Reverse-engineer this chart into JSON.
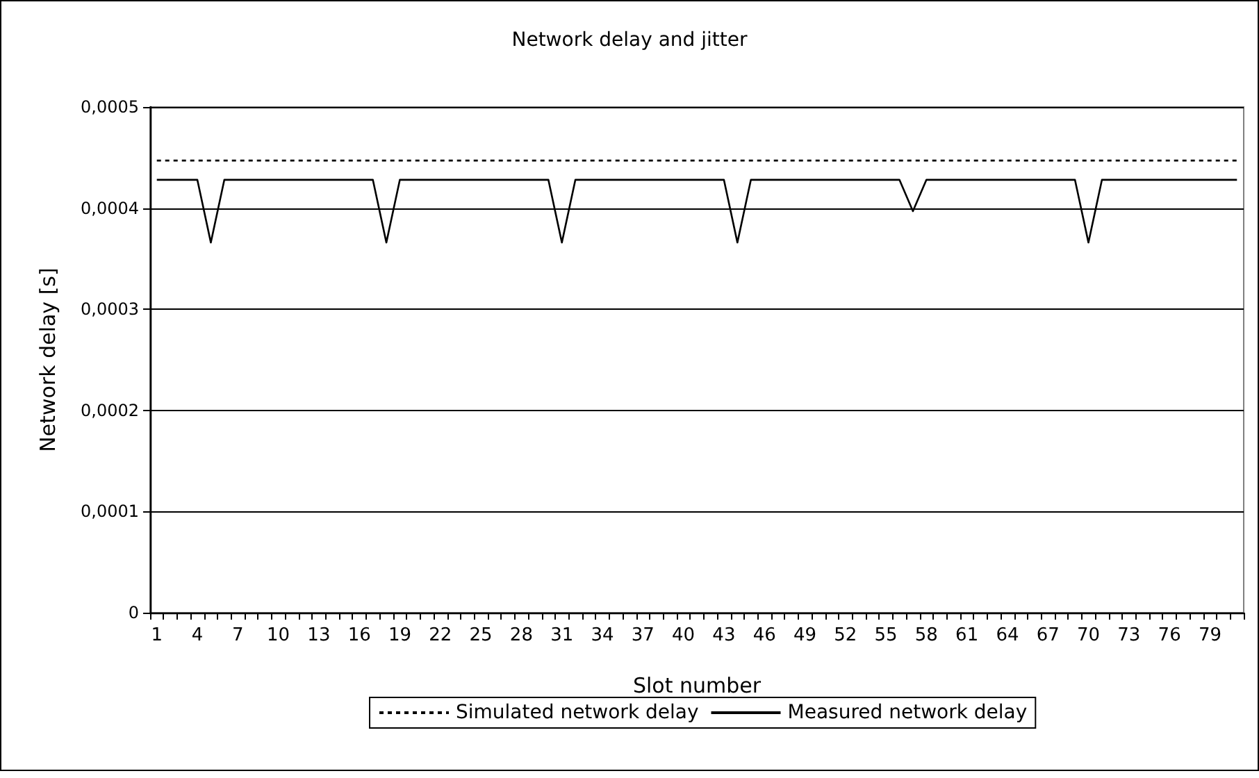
{
  "chart_data": {
    "type": "line",
    "title": "Network delay and jitter",
    "xlabel": "Slot number",
    "ylabel": "Network delay [s]",
    "categories": [
      "1",
      null,
      null,
      "4",
      null,
      null,
      "7",
      null,
      null,
      "10",
      null,
      null,
      "13",
      null,
      null,
      "16",
      null,
      null,
      "19",
      null,
      null,
      "22",
      null,
      null,
      "25",
      null,
      null,
      "28",
      null,
      null,
      "31",
      null,
      null,
      "34",
      null,
      null,
      "37",
      null,
      null,
      "40",
      null,
      null,
      "43",
      null,
      null,
      "46",
      null,
      null,
      "49",
      null,
      null,
      "52",
      null,
      null,
      "55",
      null,
      null,
      "58",
      null,
      null,
      "61",
      null,
      null,
      "64",
      null,
      null,
      "67",
      null,
      null,
      "70",
      null,
      null,
      "73",
      null,
      null,
      "76",
      null,
      null,
      "79",
      null,
      null
    ],
    "series": [
      {
        "name": "Simulated network delay",
        "color": "#000000",
        "line_style": "dotted",
        "values": [
          0.000447,
          0.000447,
          0.000447,
          0.000447,
          0.000447,
          0.000447,
          0.000447,
          0.000447,
          0.000447,
          0.000447,
          0.000447,
          0.000447,
          0.000447,
          0.000447,
          0.000447,
          0.000447,
          0.000447,
          0.000447,
          0.000447,
          0.000447,
          0.000447,
          0.000447,
          0.000447,
          0.000447,
          0.000447,
          0.000447,
          0.000447,
          0.000447,
          0.000447,
          0.000447,
          0.000447,
          0.000447,
          0.000447,
          0.000447,
          0.000447,
          0.000447,
          0.000447,
          0.000447,
          0.000447,
          0.000447,
          0.000447,
          0.000447,
          0.000447,
          0.000447,
          0.000447,
          0.000447,
          0.000447,
          0.000447,
          0.000447,
          0.000447,
          0.000447,
          0.000447,
          0.000447,
          0.000447,
          0.000447,
          0.000447,
          0.000447,
          0.000447,
          0.000447,
          0.000447,
          0.000447,
          0.000447,
          0.000447,
          0.000447,
          0.000447,
          0.000447,
          0.000447,
          0.000447,
          0.000447,
          0.000447,
          0.000447,
          0.000447,
          0.000447,
          0.000447,
          0.000447,
          0.000447,
          0.000447,
          0.000447,
          0.000447,
          0.000447,
          0.000447
        ]
      },
      {
        "name": "Measured network delay",
        "color": "#000000",
        "line_style": "solid",
        "values": [
          0.000428,
          0.000428,
          0.000428,
          0.000428,
          0.000366,
          0.000428,
          0.000428,
          0.000428,
          0.000428,
          0.000428,
          0.000428,
          0.000428,
          0.000428,
          0.000428,
          0.000428,
          0.000428,
          0.000428,
          0.000366,
          0.000428,
          0.000428,
          0.000428,
          0.000428,
          0.000428,
          0.000428,
          0.000428,
          0.000428,
          0.000428,
          0.000428,
          0.000428,
          0.000428,
          0.000366,
          0.000428,
          0.000428,
          0.000428,
          0.000428,
          0.000428,
          0.000428,
          0.000428,
          0.000428,
          0.000428,
          0.000428,
          0.000428,
          0.000428,
          0.000366,
          0.000428,
          0.000428,
          0.000428,
          0.000428,
          0.000428,
          0.000428,
          0.000428,
          0.000428,
          0.000428,
          0.000428,
          0.000428,
          0.000428,
          0.000397,
          0.000428,
          0.000428,
          0.000428,
          0.000428,
          0.000428,
          0.000428,
          0.000428,
          0.000428,
          0.000428,
          0.000428,
          0.000428,
          0.000428,
          0.000366,
          0.000428,
          0.000428,
          0.000428,
          0.000428,
          0.000428,
          0.000428,
          0.000428,
          0.000428,
          0.000428,
          0.000428,
          0.000428
        ]
      }
    ],
    "ylim": [
      0,
      0.0005
    ],
    "yticks": [
      0,
      {
        "value": 0.0001,
        "label": "0,0001"
      },
      {
        "value": 0.0002,
        "label": "0,0002"
      },
      {
        "value": 0.0003,
        "label": "0,0003"
      },
      {
        "value": 0.0004,
        "label": "0,0004"
      },
      {
        "value": 0.0005,
        "label": "0,0005"
      }
    ],
    "grid": "y",
    "legend": "bottom",
    "marker": "none"
  }
}
